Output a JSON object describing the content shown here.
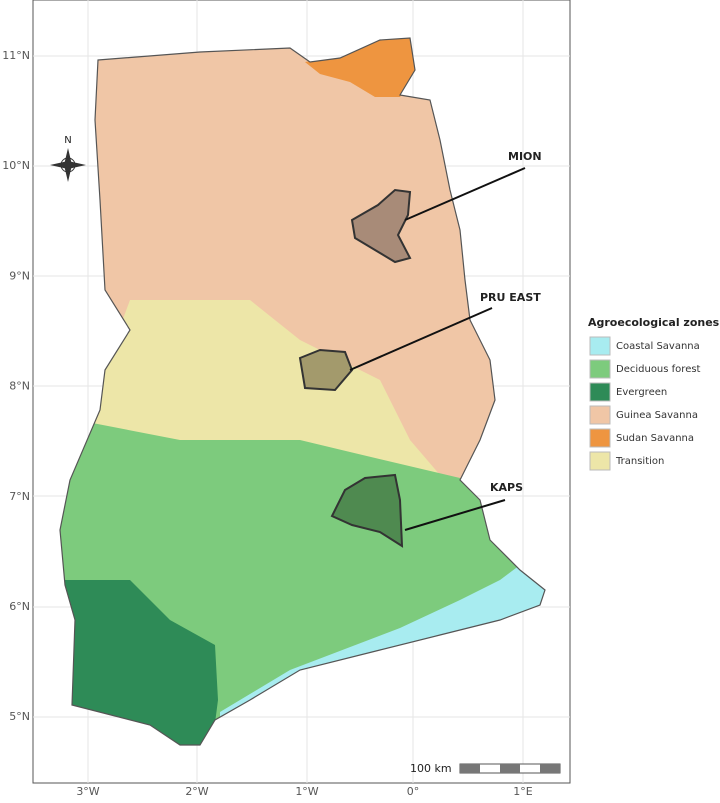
{
  "map": {
    "lat_labels": [
      "11°N",
      "10°N",
      "9°N",
      "8°N",
      "7°N",
      "6°N",
      "5°N"
    ],
    "lon_labels": [
      "3°W",
      "2°W",
      "1°W",
      "0°",
      "1°E"
    ],
    "compass": "N",
    "scale_bar": "100 km",
    "districts": [
      "MION",
      "PRU EAST",
      "KAPS"
    ],
    "legend": {
      "title": "Agroecological zones",
      "items": [
        {
          "label": "Coastal Savanna",
          "color": "#a8ecf0"
        },
        {
          "label": "Deciduous forest",
          "color": "#7dcb7d"
        },
        {
          "label": "Evergreen",
          "color": "#2e8b57"
        },
        {
          "label": "Guinea Savanna",
          "color": "#f0c6a6"
        },
        {
          "label": "Sudan Savanna",
          "color": "#ee9540"
        },
        {
          "label": "Transition",
          "color": "#ede6a8"
        }
      ]
    }
  }
}
